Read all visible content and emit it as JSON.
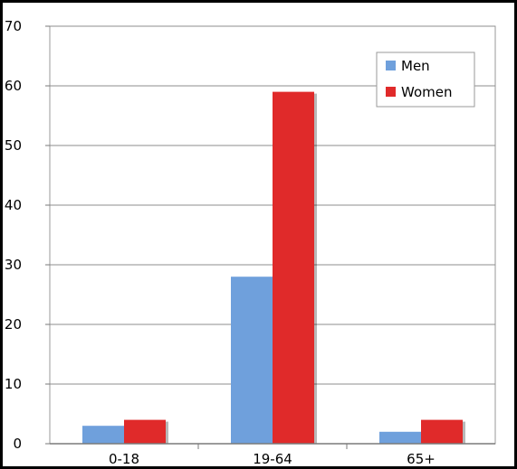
{
  "chart_data": {
    "type": "bar",
    "categories": [
      "0-18",
      "19-64",
      "65+"
    ],
    "series": [
      {
        "name": "Men",
        "values": [
          3,
          28,
          2
        ],
        "color": "#6fa0dc"
      },
      {
        "name": "Women",
        "values": [
          4,
          59,
          4
        ],
        "color": "#e02a2a"
      }
    ],
    "ylim": [
      0,
      70
    ],
    "yticks": [
      "0",
      "10",
      "20",
      "30",
      "40",
      "50",
      "60",
      "70"
    ],
    "grid": true,
    "legend": "top-right"
  }
}
